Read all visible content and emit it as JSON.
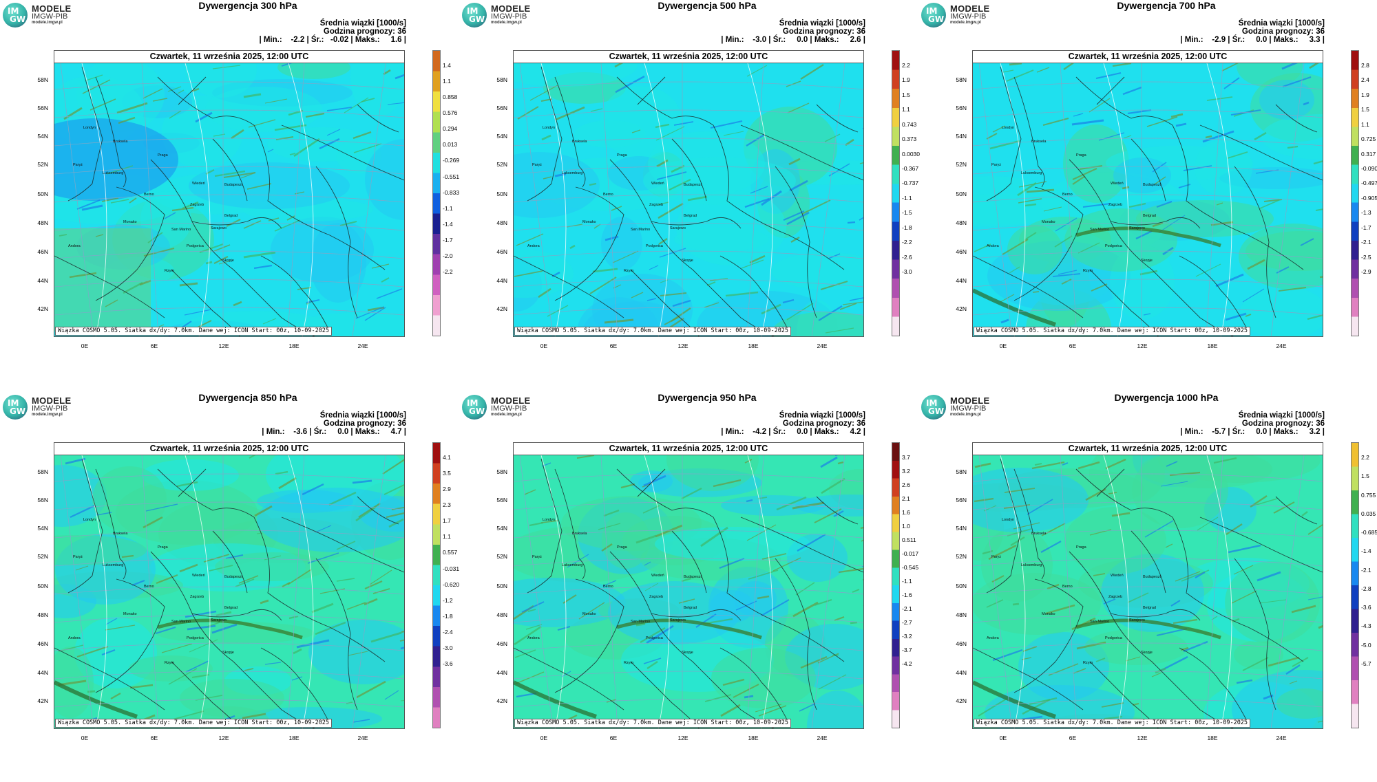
{
  "logo": {
    "im": "IM",
    "gw": "GW",
    "title": "MODELE",
    "subtitle": "IMGW-PIB",
    "url": "modele.imgw.pl"
  },
  "common": {
    "mean_label": "Średnia wiązki [1000/s]",
    "forecast_hour": "Godzina prognozy: 36",
    "date": "Czwartek, 11 września 2025, 12:00 UTC",
    "footnote": "Wiązka COSMO 5.05. Siatka dx/dy: 7.0km. Dane wej: ICON Start: 00z, 10-09-2025",
    "lat_labels": [
      "58N",
      "56N",
      "54N",
      "52N",
      "50N",
      "48N",
      "46N",
      "44N",
      "42N"
    ],
    "lon_labels": [
      "0E",
      "6E",
      "12E",
      "18E",
      "24E"
    ]
  },
  "panels": [
    {
      "title": "Dywergencja 300 hPa",
      "stats": "| Min.:    -2.2 | Śr.:   -0.02 | Maks.:     1.6 |",
      "field_level": 300,
      "colorbar": [
        "1.4",
        "1.1",
        "0.858",
        "0.576",
        "0.294",
        "0.013",
        "-0.269",
        "-0.551",
        "-0.833",
        "-1.1",
        "-1.4",
        "-1.7",
        "-2.0",
        "-2.2"
      ],
      "colorbar_colors": [
        "#d2691e",
        "#e0a020",
        "#f0e040",
        "#b0e050",
        "#60d080",
        "#20e0e0",
        "#1ab0f0",
        "#1060e0",
        "#1a2090",
        "#6030a0",
        "#a040b0",
        "#d060c0",
        "#f0a0d0",
        "#f6e6f0"
      ]
    },
    {
      "title": "Dywergencja 500 hPa",
      "stats": "| Min.:    -3.0 | Śr.:     0.0 | Maks.:     2.6 |",
      "field_level": 500,
      "colorbar": [
        "2.2",
        "1.9",
        "1.5",
        "1.1",
        "0.743",
        "0.373",
        "0.0030",
        "-0.367",
        "-0.737",
        "-1.1",
        "-1.5",
        "-1.8",
        "-2.2",
        "-2.6",
        "-3.0"
      ],
      "colorbar_colors": [
        "#a01010",
        "#d04020",
        "#e08020",
        "#f0d040",
        "#c0e060",
        "#40b050",
        "#30e0c0",
        "#20d8f0",
        "#1888f0",
        "#1040c0",
        "#302090",
        "#7030a0",
        "#b050b0",
        "#e080c0",
        "#f6e6f0"
      ]
    },
    {
      "title": "Dywergencja 700 hPa",
      "stats": "| Min.:    -2.9 | Śr.:     0.0 | Maks.:     3.3 |",
      "field_level": 700,
      "colorbar": [
        "2.8",
        "2.4",
        "1.9",
        "1.5",
        "1.1",
        "0.725",
        "0.317",
        "-0.090",
        "-0.497",
        "-0.905",
        "-1.3",
        "-1.7",
        "-2.1",
        "-2.5",
        "-2.9"
      ],
      "colorbar_colors": [
        "#a01010",
        "#d04020",
        "#e08020",
        "#f0d040",
        "#c0e060",
        "#40b050",
        "#30e0c0",
        "#20d8f0",
        "#1888f0",
        "#1040c0",
        "#302090",
        "#7030a0",
        "#b050b0",
        "#e080c0",
        "#f6e6f0"
      ]
    },
    {
      "title": "Dywergencja 850 hPa",
      "stats": "| Min.:    -3.6 | Śr.:     0.0 | Maks.:     4.7 |",
      "field_level": 850,
      "colorbar": [
        "4.1",
        "3.5",
        "2.9",
        "2.3",
        "1.7",
        "1.1",
        "0.557",
        "-0.031",
        "-0.620",
        "-1.2",
        "-1.8",
        "-2.4",
        "-3.0",
        "-3.6"
      ],
      "colorbar_colors": [
        "#a01010",
        "#d04020",
        "#e08020",
        "#f0d040",
        "#c0e060",
        "#40b050",
        "#30e0c0",
        "#20d8f0",
        "#1888f0",
        "#1040c0",
        "#302090",
        "#7030a0",
        "#b050b0",
        "#e080c0"
      ]
    },
    {
      "title": "Dywergencja 950 hPa",
      "stats": "| Min.:    -4.2 | Śr.:     0.0 | Maks.:     4.2 |",
      "field_level": 950,
      "colorbar": [
        "3.7",
        "3.2",
        "2.6",
        "2.1",
        "1.6",
        "1.0",
        "0.511",
        "-0.017",
        "-0.545",
        "-1.1",
        "-1.6",
        "-2.1",
        "-2.7",
        "-3.2",
        "-3.7",
        "-4.2"
      ],
      "colorbar_colors": [
        "#6a1010",
        "#a01010",
        "#d04020",
        "#e08020",
        "#f0d040",
        "#c0e060",
        "#40b050",
        "#30e0c0",
        "#20d8f0",
        "#1888f0",
        "#1040c0",
        "#302090",
        "#7030a0",
        "#b050b0",
        "#e080c0",
        "#f6e6f0"
      ]
    },
    {
      "title": "Dywergencja 1000 hPa",
      "stats": "| Min.:    -5.7 | Śr.:     0.0 | Maks.:     3.2 |",
      "field_level": 1000,
      "colorbar": [
        "2.2",
        "1.5",
        "0.755",
        "0.035",
        "-0.685",
        "-1.4",
        "-2.1",
        "-2.8",
        "-3.6",
        "-4.3",
        "-5.0",
        "-5.7"
      ],
      "colorbar_colors": [
        "#f0c030",
        "#c0e060",
        "#40b050",
        "#30e0c0",
        "#20d8f0",
        "#1888f0",
        "#1040c0",
        "#302090",
        "#7030a0",
        "#b050b0",
        "#e080c0",
        "#f6e6f0"
      ]
    }
  ],
  "cities": [
    "Londyn",
    "Bruksela",
    "Paryż",
    "Luksemburg",
    "Berno",
    "Praga",
    "Wiedeń",
    "Budapeszt",
    "Zagrzeb",
    "Belgrad",
    "Monako",
    "San Marino",
    "Sarajewo",
    "Andora",
    "Podgorica",
    "Skopje",
    "Rzym"
  ]
}
